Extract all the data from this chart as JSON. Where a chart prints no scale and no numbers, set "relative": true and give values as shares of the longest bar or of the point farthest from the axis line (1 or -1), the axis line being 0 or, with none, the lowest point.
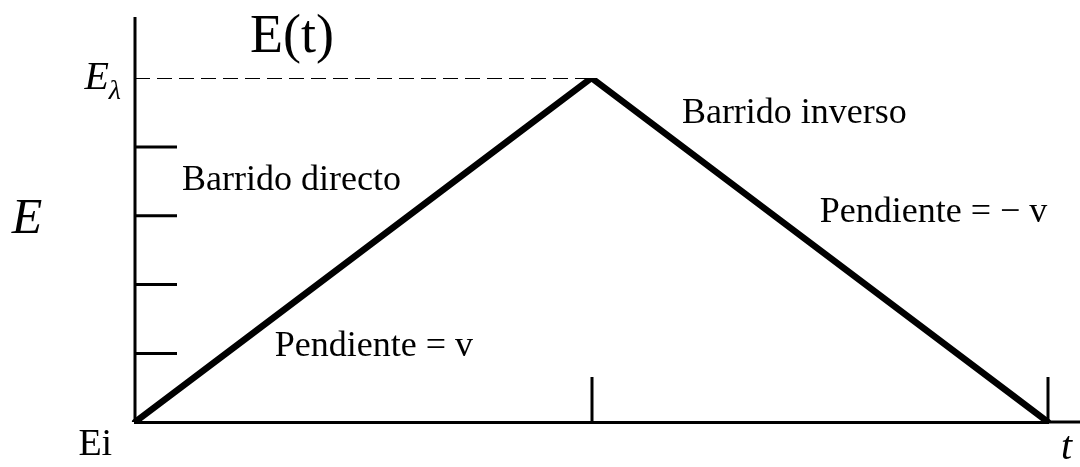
{
  "chart_data": {
    "type": "line",
    "title": "E(t)",
    "xlabel": "t",
    "ylabel": "E",
    "relative": true,
    "categories": [
      null,
      null,
      null
    ],
    "series": [
      {
        "color": "#000000",
        "values": [
          0,
          1,
          0
        ]
      },
      {
        "name": "E$_{λ}$",
        "color": "#000000",
        "line_style": "dashed",
        "values": [
          1,
          1,
          null
        ]
      }
    ],
    "annotations": [
      "Ei",
      "Barrido directo",
      "Pendiente = v",
      "Barrido inverso",
      "Pendiente = − v"
    ]
  }
}
